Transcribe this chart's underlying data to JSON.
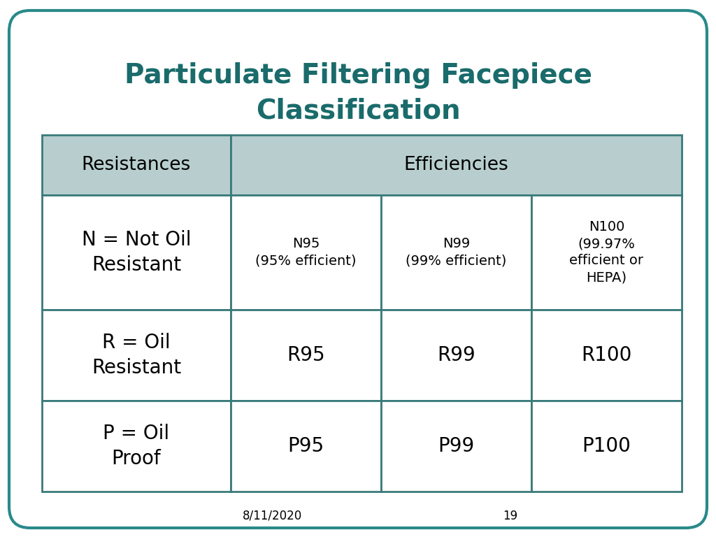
{
  "title_line1": "Particulate Filtering Facepiece",
  "title_line2": "Classification",
  "title_color": "#1a6b6b",
  "bg_color": "#ffffff",
  "border_color": "#2a8a8a",
  "table_header_bg": "#b8cece",
  "table_border_color": "#3a7a7a",
  "footer_date": "8/11/2020",
  "footer_page": "19",
  "col1_header": "Resistances",
  "col2_header": "Efficiencies",
  "row1_col1": "N = Not Oil\nResistant",
  "row1_col2": "N95\n(95% efficient)",
  "row1_col3": "N99\n(99% efficient)",
  "row1_col4": "N100\n(99.97%\nefficient or\nHEPA)",
  "row2_col1": "R = Oil\nResistant",
  "row2_col2": "R95",
  "row2_col3": "R99",
  "row2_col4": "R100",
  "row3_col1": "P = Oil\nProof",
  "row3_col2": "P95",
  "row3_col3": "P99",
  "row3_col4": "P100",
  "title_fontsize": 28,
  "header_fontsize": 19,
  "cell_fontsize_large": 20,
  "cell_fontsize_small": 14,
  "footer_fontsize": 12
}
